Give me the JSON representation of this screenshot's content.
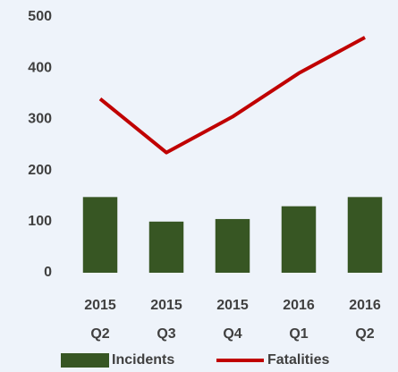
{
  "chart_data": {
    "type": "bar+line",
    "categories": [
      "2015 Q2",
      "2015 Q3",
      "2015 Q4",
      "2016 Q1",
      "2016 Q2"
    ],
    "series": [
      {
        "name": "Incidents",
        "type": "bar",
        "color": "#375623",
        "values": [
          148,
          100,
          105,
          130,
          148
        ]
      },
      {
        "name": "Fatalities",
        "type": "line",
        "color": "#c00000",
        "values": [
          340,
          235,
          305,
          390,
          460
        ]
      }
    ],
    "ylim": [
      0,
      500
    ],
    "yticks": [
      0,
      100,
      200,
      300,
      400,
      500
    ],
    "grid": false,
    "legend": "bottom"
  }
}
